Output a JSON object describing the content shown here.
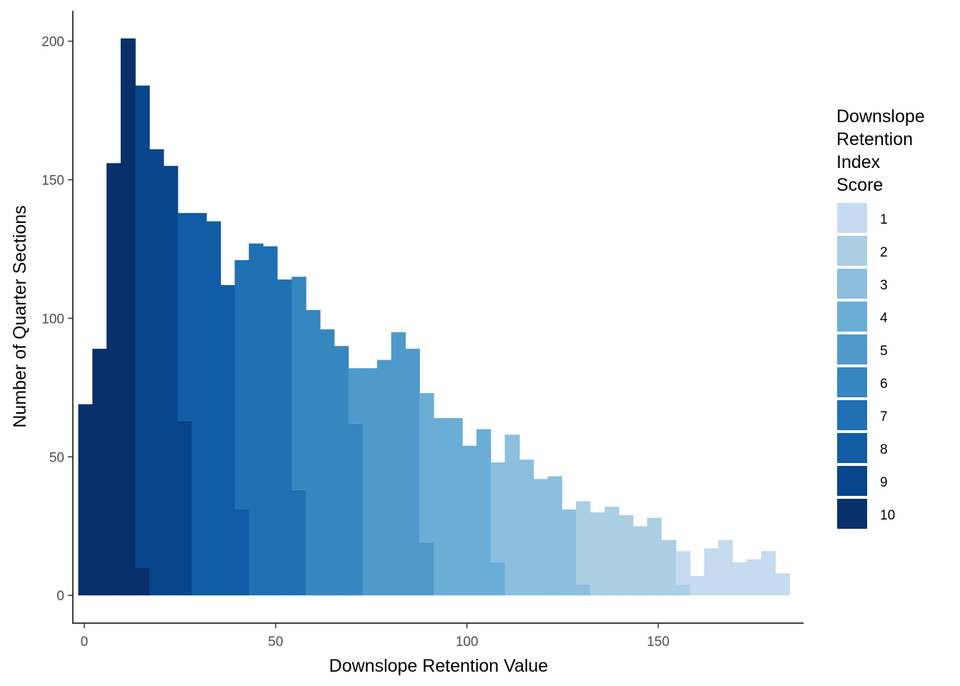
{
  "chart_data": {
    "type": "bar",
    "subtype": "stacked-histogram",
    "title": "",
    "xlabel": "Downslope Retention Value",
    "ylabel": "Number of Quarter Sections",
    "xlim": [
      -3,
      188
    ],
    "ylim": [
      -10,
      211
    ],
    "x_ticks": [
      0,
      50,
      100,
      150
    ],
    "x_tick_labels": [
      "0",
      "50",
      "100",
      "150"
    ],
    "y_ticks": [
      0,
      50,
      100,
      150,
      200
    ],
    "y_tick_labels": [
      "0",
      "50",
      "100",
      "150",
      "200"
    ],
    "grid": false,
    "legend": {
      "title_lines": [
        "Downslope",
        "Retention",
        "Index",
        "Score"
      ],
      "position": "right",
      "entries": [
        {
          "label": "1",
          "color": "#c6dbef"
        },
        {
          "label": "2",
          "color": "#abcfe5"
        },
        {
          "label": "3",
          "color": "#8bbfdd"
        },
        {
          "label": "4",
          "color": "#6aaed6"
        },
        {
          "label": "5",
          "color": "#4f9acb"
        },
        {
          "label": "6",
          "color": "#3686c0"
        },
        {
          "label": "7",
          "color": "#2070b4"
        },
        {
          "label": "8",
          "color": "#115ca5"
        },
        {
          "label": "9",
          "color": "#08468c"
        },
        {
          "label": "10",
          "color": "#08306b"
        }
      ]
    },
    "bin_width": 3.72,
    "bins": [
      {
        "x0": -1.6,
        "x1": 2.1,
        "segments": [
          {
            "score": "10",
            "value": 69
          }
        ]
      },
      {
        "x0": 2.1,
        "x1": 5.8,
        "segments": [
          {
            "score": "10",
            "value": 89
          }
        ]
      },
      {
        "x0": 5.8,
        "x1": 9.5,
        "segments": [
          {
            "score": "10",
            "value": 156
          }
        ]
      },
      {
        "x0": 9.5,
        "x1": 13.3,
        "segments": [
          {
            "score": "10",
            "value": 201
          }
        ]
      },
      {
        "x0": 13.3,
        "x1": 17.0,
        "segments": [
          {
            "score": "10",
            "value": 10
          },
          {
            "score": "9",
            "value": 174
          }
        ]
      },
      {
        "x0": 17.0,
        "x1": 20.7,
        "segments": [
          {
            "score": "9",
            "value": 161
          }
        ]
      },
      {
        "x0": 20.7,
        "x1": 24.4,
        "segments": [
          {
            "score": "9",
            "value": 155
          }
        ]
      },
      {
        "x0": 24.4,
        "x1": 28.1,
        "segments": [
          {
            "score": "9",
            "value": 63
          },
          {
            "score": "8",
            "value": 75
          }
        ]
      },
      {
        "x0": 28.1,
        "x1": 31.9,
        "segments": [
          {
            "score": "8",
            "value": 138
          }
        ]
      },
      {
        "x0": 31.9,
        "x1": 35.6,
        "segments": [
          {
            "score": "8",
            "value": 135
          }
        ]
      },
      {
        "x0": 35.6,
        "x1": 39.3,
        "segments": [
          {
            "score": "8",
            "value": 112
          }
        ]
      },
      {
        "x0": 39.3,
        "x1": 43.0,
        "segments": [
          {
            "score": "8",
            "value": 31
          },
          {
            "score": "7",
            "value": 90
          }
        ]
      },
      {
        "x0": 43.0,
        "x1": 46.7,
        "segments": [
          {
            "score": "7",
            "value": 127
          }
        ]
      },
      {
        "x0": 46.7,
        "x1": 50.4,
        "segments": [
          {
            "score": "7",
            "value": 126
          }
        ]
      },
      {
        "x0": 50.4,
        "x1": 54.2,
        "segments": [
          {
            "score": "7",
            "value": 114
          }
        ]
      },
      {
        "x0": 54.2,
        "x1": 57.9,
        "segments": [
          {
            "score": "7",
            "value": 38
          },
          {
            "score": "6",
            "value": 77
          }
        ]
      },
      {
        "x0": 57.9,
        "x1": 61.6,
        "segments": [
          {
            "score": "6",
            "value": 103
          }
        ]
      },
      {
        "x0": 61.6,
        "x1": 65.3,
        "segments": [
          {
            "score": "6",
            "value": 96
          }
        ]
      },
      {
        "x0": 65.3,
        "x1": 69.0,
        "segments": [
          {
            "score": "6",
            "value": 90
          }
        ]
      },
      {
        "x0": 69.0,
        "x1": 72.8,
        "segments": [
          {
            "score": "6",
            "value": 62
          },
          {
            "score": "5",
            "value": 20
          }
        ]
      },
      {
        "x0": 72.8,
        "x1": 76.5,
        "segments": [
          {
            "score": "5",
            "value": 82
          }
        ]
      },
      {
        "x0": 76.5,
        "x1": 80.2,
        "segments": [
          {
            "score": "5",
            "value": 85
          }
        ]
      },
      {
        "x0": 80.2,
        "x1": 83.9,
        "segments": [
          {
            "score": "5",
            "value": 95
          }
        ]
      },
      {
        "x0": 83.9,
        "x1": 87.6,
        "segments": [
          {
            "score": "5",
            "value": 89
          }
        ]
      },
      {
        "x0": 87.6,
        "x1": 91.3,
        "segments": [
          {
            "score": "5",
            "value": 19
          },
          {
            "score": "4",
            "value": 54
          }
        ]
      },
      {
        "x0": 91.3,
        "x1": 95.1,
        "segments": [
          {
            "score": "4",
            "value": 64
          }
        ]
      },
      {
        "x0": 95.1,
        "x1": 98.8,
        "segments": [
          {
            "score": "4",
            "value": 64
          }
        ]
      },
      {
        "x0": 98.8,
        "x1": 102.5,
        "segments": [
          {
            "score": "4",
            "value": 54
          }
        ]
      },
      {
        "x0": 102.5,
        "x1": 106.2,
        "segments": [
          {
            "score": "4",
            "value": 60
          }
        ]
      },
      {
        "x0": 106.2,
        "x1": 109.9,
        "segments": [
          {
            "score": "4",
            "value": 12
          },
          {
            "score": "3",
            "value": 36
          }
        ]
      },
      {
        "x0": 109.9,
        "x1": 113.7,
        "segments": [
          {
            "score": "3",
            "value": 58
          }
        ]
      },
      {
        "x0": 113.7,
        "x1": 117.4,
        "segments": [
          {
            "score": "3",
            "value": 49
          }
        ]
      },
      {
        "x0": 117.4,
        "x1": 121.1,
        "segments": [
          {
            "score": "3",
            "value": 42
          }
        ]
      },
      {
        "x0": 121.1,
        "x1": 124.8,
        "segments": [
          {
            "score": "3",
            "value": 43
          }
        ]
      },
      {
        "x0": 124.8,
        "x1": 128.5,
        "segments": [
          {
            "score": "3",
            "value": 31
          }
        ]
      },
      {
        "x0": 128.5,
        "x1": 132.2,
        "segments": [
          {
            "score": "3",
            "value": 4
          },
          {
            "score": "2",
            "value": 30
          }
        ]
      },
      {
        "x0": 132.2,
        "x1": 136.0,
        "segments": [
          {
            "score": "2",
            "value": 30
          }
        ]
      },
      {
        "x0": 136.0,
        "x1": 139.7,
        "segments": [
          {
            "score": "2",
            "value": 32
          }
        ]
      },
      {
        "x0": 139.7,
        "x1": 143.4,
        "segments": [
          {
            "score": "2",
            "value": 29
          }
        ]
      },
      {
        "x0": 143.4,
        "x1": 147.1,
        "segments": [
          {
            "score": "2",
            "value": 25
          }
        ]
      },
      {
        "x0": 147.1,
        "x1": 150.8,
        "segments": [
          {
            "score": "2",
            "value": 28
          }
        ]
      },
      {
        "x0": 150.8,
        "x1": 154.6,
        "segments": [
          {
            "score": "2",
            "value": 20
          }
        ]
      },
      {
        "x0": 154.6,
        "x1": 158.3,
        "segments": [
          {
            "score": "2",
            "value": 4
          },
          {
            "score": "1",
            "value": 12
          }
        ]
      },
      {
        "x0": 158.3,
        "x1": 162.0,
        "segments": [
          {
            "score": "1",
            "value": 7
          }
        ]
      },
      {
        "x0": 162.0,
        "x1": 165.7,
        "segments": [
          {
            "score": "1",
            "value": 17
          }
        ]
      },
      {
        "x0": 165.7,
        "x1": 169.4,
        "segments": [
          {
            "score": "1",
            "value": 20
          }
        ]
      },
      {
        "x0": 169.4,
        "x1": 173.1,
        "segments": [
          {
            "score": "1",
            "value": 12
          }
        ]
      },
      {
        "x0": 173.1,
        "x1": 176.9,
        "segments": [
          {
            "score": "1",
            "value": 13
          }
        ]
      },
      {
        "x0": 176.9,
        "x1": 180.6,
        "segments": [
          {
            "score": "1",
            "value": 16
          }
        ]
      },
      {
        "x0": 180.6,
        "x1": 184.3,
        "segments": [
          {
            "score": "1",
            "value": 8
          }
        ]
      }
    ]
  }
}
